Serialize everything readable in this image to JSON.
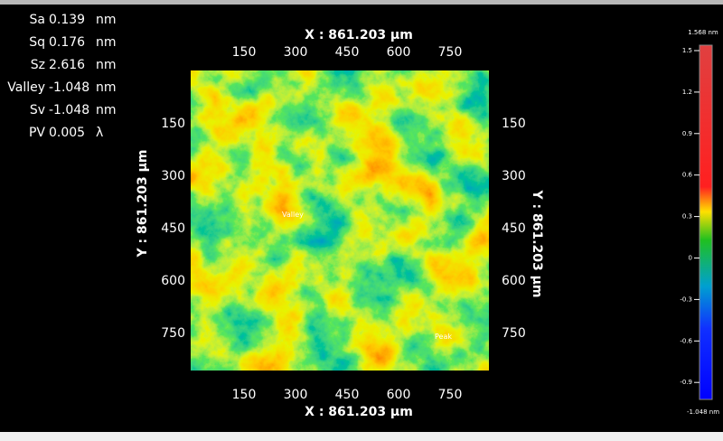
{
  "stats": [
    {
      "label": "Sa",
      "value": "0.139",
      "unit": "nm"
    },
    {
      "label": "Sq",
      "value": "0.176",
      "unit": "nm"
    },
    {
      "label": "Sz",
      "value": "2.616",
      "unit": "nm"
    },
    {
      "label": "Valley",
      "value": "-1.048",
      "unit": "nm"
    },
    {
      "label": "Sv",
      "value": "-1.048",
      "unit": "nm"
    },
    {
      "label": "PV",
      "value": "0.005",
      "unit": "λ"
    }
  ],
  "map": {
    "x_title": "X : 861.203 µm",
    "y_title": "Y : 861.203 µm",
    "x_ticks": [
      "150",
      "300",
      "450",
      "600",
      "750"
    ],
    "y_ticks": [
      "150",
      "300",
      "450",
      "600",
      "750"
    ],
    "valley_marker": "Valley",
    "peak_marker": "Peak"
  },
  "colorbar": {
    "max_label": "1.568 nm",
    "ticks": [
      "1.5",
      "1.2",
      "0.9",
      "0.6",
      "0.3",
      "0",
      "-0.3",
      "-0.6",
      "-0.9"
    ],
    "min_label": "-1.048 nm"
  }
}
